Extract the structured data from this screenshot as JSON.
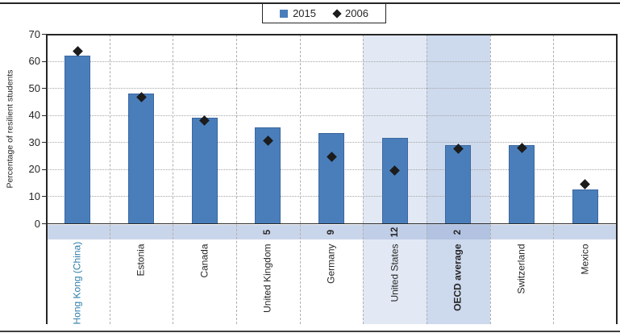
{
  "figure": {
    "legend": {
      "items": [
        {
          "label": "2015",
          "marker": "square"
        },
        {
          "label": "2006",
          "marker": "diamond"
        }
      ]
    }
  },
  "chart_data": {
    "type": "bar",
    "title": "",
    "xlabel": "",
    "ylabel": "Percentage of resilient students",
    "ylim": [
      0,
      70
    ],
    "y_ticks": [
      0,
      10,
      20,
      30,
      40,
      50,
      60,
      70
    ],
    "grid": "horizontal dotted gridlines, dashed vertical category separators",
    "legend_position": "top-center",
    "categories": [
      "Hong Kong (China)",
      "Estonia",
      "Canada",
      "United Kingdom",
      "Germany",
      "United States",
      "OECD average",
      "Switzerland",
      "Mexico"
    ],
    "series": [
      {
        "name": "2015",
        "type": "bar",
        "values": [
          62,
          48,
          39,
          35.5,
          33.5,
          31.5,
          29,
          29,
          12.5
        ]
      },
      {
        "name": "2006",
        "type": "diamond-marker",
        "values": [
          63.5,
          46.5,
          38,
          30.5,
          24.5,
          19.5,
          27.5,
          28,
          14.5
        ]
      }
    ],
    "change_labels": [
      "",
      "",
      "",
      "5",
      "9",
      "12",
      "2",
      "",
      ""
    ],
    "highlighted_columns": {
      "United States": "light",
      "OECD average": "strong"
    },
    "category_label_styles": {
      "Hong Kong (China)": "accent",
      "OECD average": "bold"
    }
  },
  "colors": {
    "bar_fill": "#4a7ebb",
    "bar_border": "#3b67a0",
    "marker": "#1c1c1c",
    "band": "#c9d5ea",
    "band_highlight_light": "#c1cee7",
    "band_highlight_strong": "#b2c2e0",
    "column_highlight_light": "#e2e9f4",
    "column_highlight_strong": "#cdd9ed",
    "accent_label": "#2c7ca9",
    "text": "#262626"
  }
}
